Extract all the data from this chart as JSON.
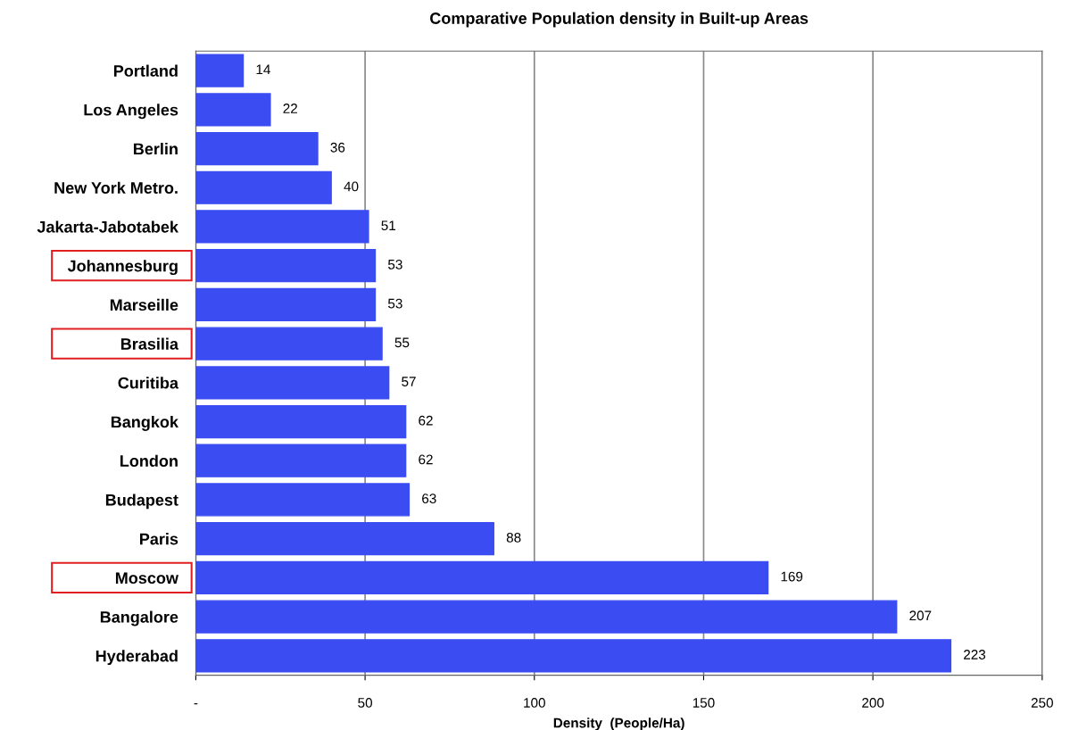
{
  "chart_data": {
    "type": "bar",
    "orientation": "horizontal",
    "title": "Comparative Population density in Built-up Areas",
    "xlabel": "Density  (People/Ha)",
    "categories": [
      "Portland",
      "Los Angeles",
      "Berlin",
      "New York Metro.",
      "Jakarta-Jabotabek",
      "Johannesburg",
      "Marseille",
      "Brasilia",
      "Curitiba",
      "Bangkok",
      "London",
      "Budapest",
      "Paris",
      "Moscow",
      "Bangalore",
      "Hyderabad"
    ],
    "values": [
      14,
      22,
      36,
      40,
      51,
      53,
      53,
      55,
      57,
      62,
      62,
      63,
      88,
      169,
      207,
      223
    ],
    "color": "#3a4cf2",
    "data_labels": true,
    "grid": "x",
    "xlim": [
      0,
      250
    ],
    "xticks": [
      {
        "value": 0,
        "label": "-"
      },
      50,
      100,
      150,
      200,
      250
    ]
  }
}
